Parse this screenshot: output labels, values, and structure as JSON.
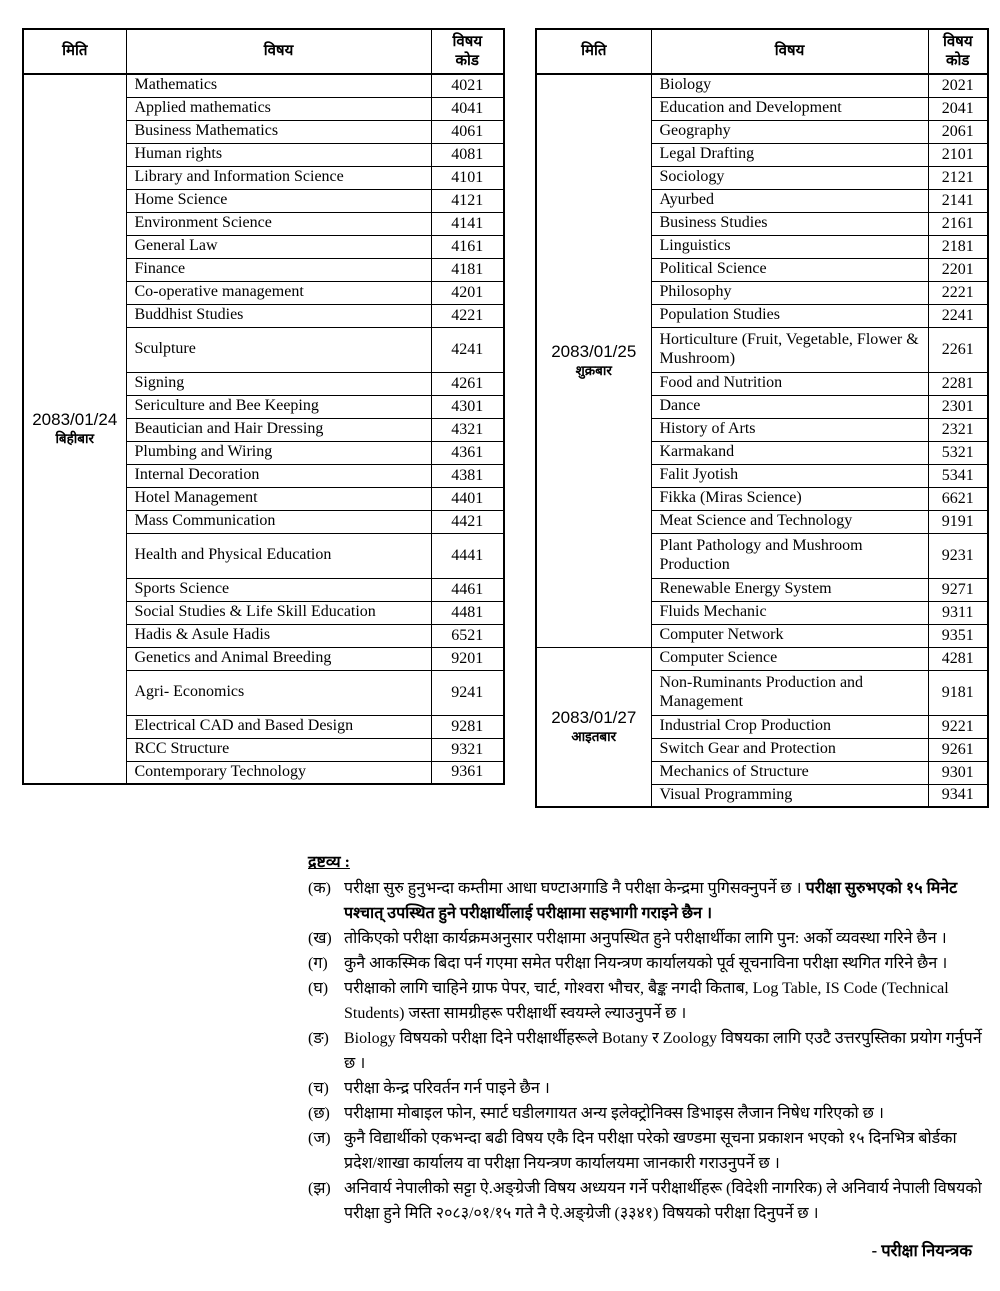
{
  "header": {
    "date": "मिति",
    "subject": "विषय",
    "code": "विषय\nकोड"
  },
  "tables": [
    {
      "groups": [
        {
          "date_line1": "2083/01/24",
          "date_line2": "बिहीबार",
          "rows": [
            {
              "subject": "Mathematics",
              "code": "4021"
            },
            {
              "subject": "Applied mathematics",
              "code": "4041"
            },
            {
              "subject": "Business Mathematics",
              "code": "4061"
            },
            {
              "subject": "Human rights",
              "code": "4081"
            },
            {
              "subject": "Library and Information Science",
              "code": "4101"
            },
            {
              "subject": "Home Science",
              "code": "4121"
            },
            {
              "subject": "Environment  Science",
              "code": "4141"
            },
            {
              "subject": "General Law",
              "code": "4161"
            },
            {
              "subject": "Finance",
              "code": "4181"
            },
            {
              "subject": "Co-operative management",
              "code": "4201"
            },
            {
              "subject": "Buddhist Studies",
              "code": "4221"
            },
            {
              "subject": "Sculpture",
              "code": "4241",
              "tall": true
            },
            {
              "subject": "Signing",
              "code": "4261"
            },
            {
              "subject": "Sericulture and Bee Keeping",
              "code": "4301"
            },
            {
              "subject": "Beautician and Hair Dressing",
              "code": "4321"
            },
            {
              "subject": "Plumbing and Wiring",
              "code": "4361"
            },
            {
              "subject": "Internal Decoration",
              "code": "4381"
            },
            {
              "subject": "Hotel Management",
              "code": "4401"
            },
            {
              "subject": "Mass Communication",
              "code": "4421"
            },
            {
              "subject": "Health and Physical Education",
              "code": "4441",
              "tall": true
            },
            {
              "subject": "Sports Science",
              "code": "4461"
            },
            {
              "subject": "Social Studies & Life Skill Education",
              "code": "4481"
            },
            {
              "subject": "Hadis & Asule Hadis",
              "code": "6521"
            },
            {
              "subject": "Genetics and Animal Breeding",
              "code": "9201"
            },
            {
              "subject": "Agri- Economics",
              "code": "9241",
              "tall": true
            },
            {
              "subject": "Electrical CAD and Based Design",
              "code": "9281"
            },
            {
              "subject": "RCC Structure",
              "code": "9321"
            },
            {
              "subject": "Contemporary Technology",
              "code": "9361"
            }
          ]
        }
      ]
    },
    {
      "groups": [
        {
          "date_line1": "2083/01/25",
          "date_line2": "शुक्रबार",
          "rows": [
            {
              "subject": "Biology",
              "code": "2021"
            },
            {
              "subject": "Education and Development",
              "code": "2041"
            },
            {
              "subject": "Geography",
              "code": "2061"
            },
            {
              "subject": "Legal Drafting",
              "code": "2101"
            },
            {
              "subject": "Sociology",
              "code": "2121"
            },
            {
              "subject": "Ayurbed",
              "code": "2141"
            },
            {
              "subject": "Business Studies",
              "code": "2161"
            },
            {
              "subject": "Linguistics",
              "code": "2181"
            },
            {
              "subject": "Political Science",
              "code": "2201"
            },
            {
              "subject": "Philosophy",
              "code": "2221"
            },
            {
              "subject": "Population Studies",
              "code": "2241"
            },
            {
              "subject": "Horticulture (Fruit, Vegetable, Flower & Mushroom)",
              "code": "2261",
              "tall": true
            },
            {
              "subject": "Food and Nutrition",
              "code": "2281"
            },
            {
              "subject": "Dance",
              "code": "2301"
            },
            {
              "subject": "History of Arts",
              "code": "2321"
            },
            {
              "subject": "Karmakand",
              "code": "5321"
            },
            {
              "subject": "Falit Jyotish",
              "code": "5341"
            },
            {
              "subject": "Fikka (Miras Science)",
              "code": "6621"
            },
            {
              "subject": "Meat Science and Technology",
              "code": "9191"
            },
            {
              "subject": "Plant Pathology and Mushroom Production",
              "code": "9231",
              "tall": true
            },
            {
              "subject": "Renewable Energy System",
              "code": "9271"
            },
            {
              "subject": "Fluids Mechanic",
              "code": "9311"
            },
            {
              "subject": "Computer Network",
              "code": "9351"
            }
          ]
        },
        {
          "date_line1": "2083/01/27",
          "date_line2": "आइतबार",
          "rows": [
            {
              "subject": "Computer Science",
              "code": "4281"
            },
            {
              "subject": "Non-Ruminants Production and Management",
              "code": "9181",
              "tall": true
            },
            {
              "subject": "Industrial Crop Production",
              "code": "9221"
            },
            {
              "subject": "Switch Gear and Protection",
              "code": "9261"
            },
            {
              "subject": "Mechanics of Structure",
              "code": "9301"
            },
            {
              "subject": "Visual Programming",
              "code": "9341"
            }
          ]
        }
      ]
    }
  ],
  "notes": {
    "title": "द्रष्टव्य :",
    "items": [
      {
        "label": "(क)",
        "parts": [
          {
            "text": "परीक्षा सुरु हुनुभन्दा कम्तीमा आधा घण्टाअगाडि नै परीक्षा केन्द्रमा पुगिसक्नुपर्ने छ । ",
            "bold": false
          },
          {
            "text": "परीक्षा सुरुभएको १५ मिनेट पश्चात् उपस्थित हुने परीक्षार्थीलाई परीक्षामा सहभागी गराइने छैन ।",
            "bold": true
          }
        ]
      },
      {
        "label": "(ख)",
        "parts": [
          {
            "text": "तोकिएको परीक्षा कार्यक्रमअनुसार परीक्षामा अनुपस्थित हुने परीक्षार्थीका लागि पुन: अर्को व्यवस्था गरिने छैन ।",
            "bold": false
          }
        ]
      },
      {
        "label": "(ग)",
        "parts": [
          {
            "text": "कुनै आकस्मिक बिदा पर्न गएमा समेत परीक्षा नियन्त्रण कार्यालयको पूर्व सूचनाविना परीक्षा स्थगित गरिने छैन ।",
            "bold": false
          }
        ]
      },
      {
        "label": "(घ)",
        "parts": [
          {
            "text": "परीक्षाको लागि चाहिने ग्राफ पेपर, चार्ट, गोश्वरा भौचर, बैङ्क नगदी किताब, Log Table, IS Code (Technical Students) जस्ता सामग्रीहरू परीक्षार्थी स्वयम्ले ल्याउनुपर्ने छ ।",
            "bold": false
          }
        ]
      },
      {
        "label": "(ङ)",
        "parts": [
          {
            "text": "Biology विषयको परीक्षा दिने परीक्षार्थीहरूले Botany  र Zoology विषयका लागि एउटै उत्तरपुस्तिका प्रयोग गर्नुपर्ने छ ।",
            "bold": false
          }
        ]
      },
      {
        "label": "(च)",
        "parts": [
          {
            "text": "परीक्षा केन्द्र परिवर्तन गर्न पाइने छैन ।",
            "bold": false
          }
        ]
      },
      {
        "label": "(छ)",
        "parts": [
          {
            "text": "परीक्षामा मोबाइल फोन, स्मार्ट घडीलगायत अन्य इलेक्ट्रोनिक्स डिभाइस लैजान निषेध गरिएको छ ।",
            "bold": false
          }
        ]
      },
      {
        "label": "(ज)",
        "parts": [
          {
            "text": "कुनै विद्यार्थीको एकभन्दा बढी विषय एकै दिन परीक्षा परेको खण्डमा सूचना प्रकाशन भएको १५ दिनभित्र बोर्डका प्रदेश/शाखा कार्यालय वा परीक्षा नियन्त्रण कार्यालयमा जानकारी गराउनुपर्ने छ ।",
            "bold": false
          }
        ]
      },
      {
        "label": "(झ)",
        "parts": [
          {
            "text": "अनिवार्य नेपालीको सट्टा ऐ.अङ्ग्रेजी विषय अध्ययन गर्ने परीक्षार्थीहरू (विदेशी नागरिक) ले अनिवार्य नेपाली विषयको परीक्षा हुने मिति २०८३/०१/१५ गते नै ऐ.अङ्ग्रेजी (३३४१) विषयको परीक्षा दिनुपर्ने छ ।",
            "bold": false
          }
        ]
      }
    ]
  },
  "signature": "- परीक्षा नियन्त्रक"
}
